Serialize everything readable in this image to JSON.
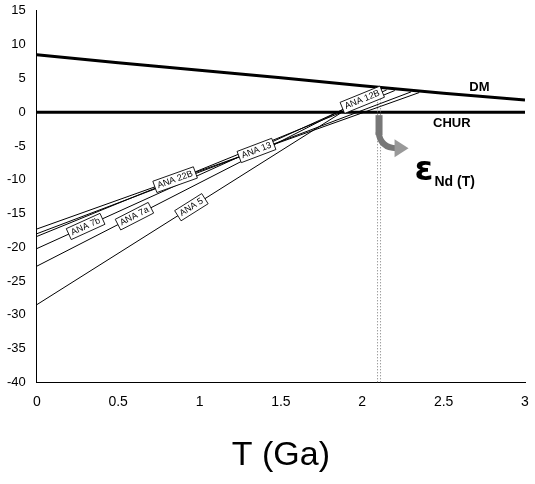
{
  "chart_data": {
    "type": "line",
    "x_label": "T (Ga)",
    "xlim": [
      0,
      3
    ],
    "xticks": [
      0,
      0.5,
      1,
      1.5,
      2,
      2.5,
      3
    ],
    "ylim": [
      -40,
      15
    ],
    "yticks": [
      -40,
      -35,
      -30,
      -25,
      -20,
      -15,
      -10,
      -5,
      0,
      5,
      10,
      15
    ],
    "grid": false,
    "series": [
      {
        "name": "DM",
        "color": "#000000",
        "x": [
          0,
          0.5,
          1,
          1.5,
          2,
          2.5,
          3
        ],
        "values": [
          8.5,
          7.3,
          6.2,
          5.1,
          3.9,
          2.8,
          1.8
        ]
      },
      {
        "name": "CHUR",
        "color": "#000000",
        "x": [
          0,
          3
        ],
        "values": [
          0,
          0
        ]
      },
      {
        "name": "ANA 22B",
        "color": "#000000",
        "x": [
          0,
          2.35
        ],
        "values": [
          -17.3,
          2.9
        ]
      },
      {
        "name": "ANA 13",
        "color": "#000000",
        "x": [
          0,
          2.3
        ],
        "values": [
          -18.0,
          3.0
        ]
      },
      {
        "name": "ANA 12B",
        "color": "#000000",
        "x": [
          0,
          2.2
        ],
        "values": [
          -18.4,
          3.2
        ]
      },
      {
        "name": "ANA 7b",
        "color": "#000000",
        "x": [
          0,
          2.15
        ],
        "values": [
          -20.2,
          3.3
        ]
      },
      {
        "name": "ANA 7a",
        "color": "#000000",
        "x": [
          0,
          2.12
        ],
        "values": [
          -22.8,
          3.35
        ]
      },
      {
        "name": "ANA 5",
        "color": "#000000",
        "x": [
          0,
          2.1
        ],
        "values": [
          -28.5,
          3.4
        ]
      }
    ],
    "annotations": [
      {
        "text": "εNd (T)",
        "x": 2.1
      }
    ]
  }
}
